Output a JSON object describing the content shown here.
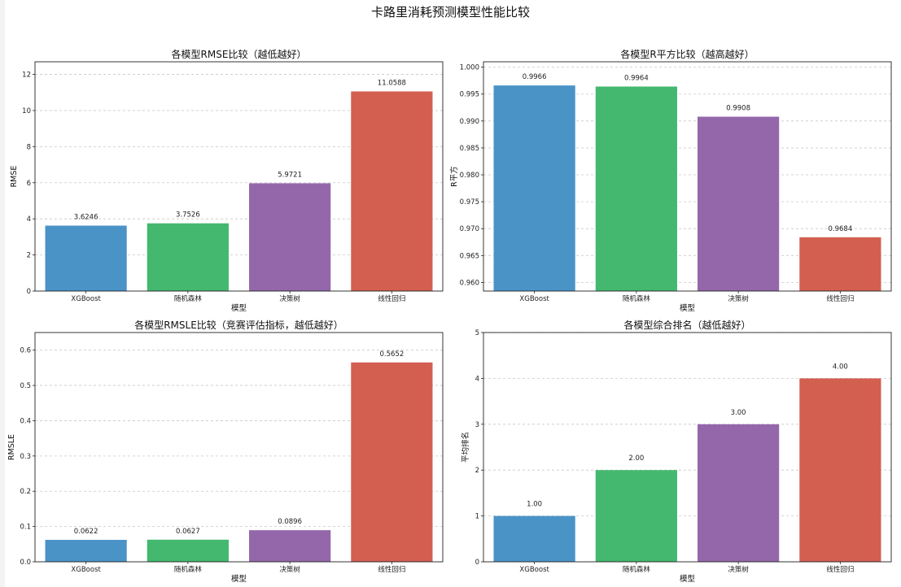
{
  "suptitle": "卡路里消耗预测模型性能比较",
  "colors": {
    "xgboost": "#4a93c7",
    "rf": "#44b86f",
    "dt": "#9467ab",
    "lr": "#d35f50"
  },
  "chart_data": [
    {
      "type": "bar",
      "title": "各模型RMSE比较（越低越好）",
      "xlabel": "模型",
      "ylabel": "RMSE",
      "categories": [
        "XGBoost",
        "随机森林",
        "决策树",
        "线性回归"
      ],
      "values": [
        3.6246,
        3.7526,
        5.9721,
        11.0588
      ],
      "value_labels": [
        "3.6246",
        "3.7526",
        "5.9721",
        "11.0588"
      ],
      "ylim": [
        0,
        12.7
      ],
      "yticks": [
        0,
        2,
        4,
        6,
        8,
        10,
        12
      ],
      "ytick_labels": [
        "0",
        "2",
        "4",
        "6",
        "8",
        "10",
        "12"
      ],
      "grid": "y"
    },
    {
      "type": "bar",
      "title": "各模型R平方比较（越高越好）",
      "xlabel": "模型",
      "ylabel": "R平方",
      "categories": [
        "XGBoost",
        "随机森林",
        "决策树",
        "线性回归"
      ],
      "values": [
        0.9966,
        0.9964,
        0.9908,
        0.9684
      ],
      "value_labels": [
        "0.9966",
        "0.9964",
        "0.9908",
        "0.9684"
      ],
      "ylim": [
        0.9584,
        1.001
      ],
      "yticks": [
        0.96,
        0.965,
        0.97,
        0.975,
        0.98,
        0.985,
        0.99,
        0.995,
        1.0
      ],
      "ytick_labels": [
        "0.960",
        "0.965",
        "0.970",
        "0.975",
        "0.980",
        "0.985",
        "0.990",
        "0.995",
        "1.000"
      ],
      "grid": "y"
    },
    {
      "type": "bar",
      "title": "各模型RMSLE比较（竞赛评估指标，越低越好）",
      "xlabel": "模型",
      "ylabel": "RMSLE",
      "categories": [
        "XGBoost",
        "随机森林",
        "决策树",
        "线性回归"
      ],
      "values": [
        0.0622,
        0.0627,
        0.0896,
        0.5652
      ],
      "value_labels": [
        "0.0622",
        "0.0627",
        "0.0896",
        "0.5652"
      ],
      "ylim": [
        0,
        0.65
      ],
      "yticks": [
        0,
        0.1,
        0.2,
        0.3,
        0.4,
        0.5,
        0.6
      ],
      "ytick_labels": [
        "0.0",
        "0.1",
        "0.2",
        "0.3",
        "0.4",
        "0.5",
        "0.6"
      ],
      "grid": "y"
    },
    {
      "type": "bar",
      "title": "各模型综合排名（越低越好）",
      "xlabel": "模型",
      "ylabel": "平均排名",
      "categories": [
        "XGBoost",
        "随机森林",
        "决策树",
        "线性回归"
      ],
      "values": [
        1,
        2,
        3,
        4
      ],
      "value_labels": [
        "1.00",
        "2.00",
        "3.00",
        "4.00"
      ],
      "ylim": [
        0,
        5
      ],
      "yticks": [
        0,
        1,
        2,
        3,
        4,
        5
      ],
      "ytick_labels": [
        "0",
        "1",
        "2",
        "3",
        "4",
        "5"
      ],
      "grid": "y"
    }
  ]
}
